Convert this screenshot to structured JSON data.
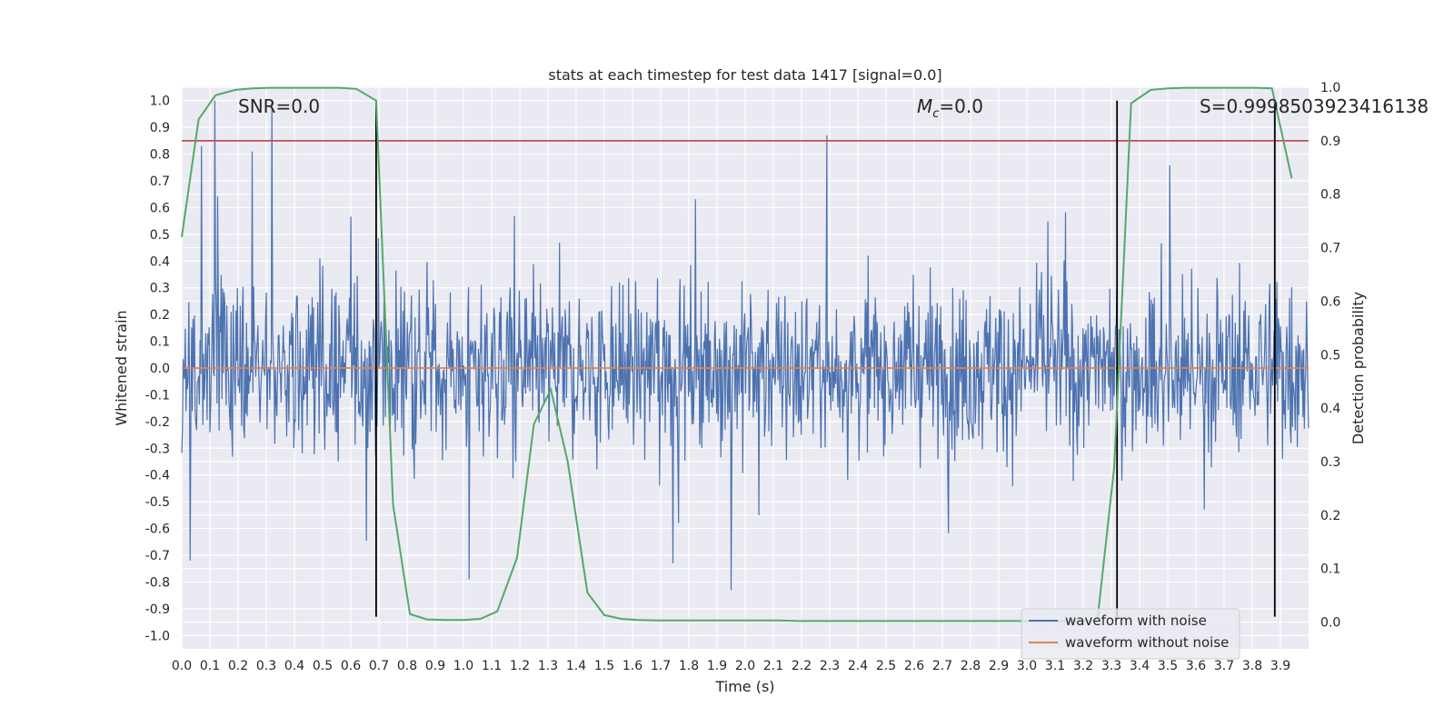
{
  "chart_data": {
    "type": "line",
    "title": "stats at each timestep for test data 1417 [signal=0.0]",
    "xlabel": "Time (s)",
    "ylabel_left": "Whitened strain",
    "ylabel_right": "Detection probability",
    "xlim": [
      0.0,
      4.0
    ],
    "ylim_left": [
      -1.05,
      1.05
    ],
    "ylim_right": [
      -0.05,
      1.0
    ],
    "x_ticks": [
      "0.0",
      "0.1",
      "0.2",
      "0.3",
      "0.4",
      "0.5",
      "0.6",
      "0.7",
      "0.8",
      "0.9",
      "1.0",
      "1.1",
      "1.2",
      "1.3",
      "1.4",
      "1.5",
      "1.6",
      "1.7",
      "1.8",
      "1.9",
      "2.0",
      "2.1",
      "2.2",
      "2.3",
      "2.4",
      "2.5",
      "2.6",
      "2.7",
      "2.8",
      "2.9",
      "3.0",
      "3.1",
      "3.2",
      "3.3",
      "3.4",
      "3.5",
      "3.6",
      "3.7",
      "3.8",
      "3.9"
    ],
    "y_ticks_left": [
      "1.0",
      "0.9",
      "0.8",
      "0.7",
      "0.6",
      "0.5",
      "0.4",
      "0.3",
      "0.2",
      "0.1",
      "0.0",
      "-0.1",
      "-0.2",
      "-0.3",
      "-0.4",
      "-0.5",
      "-0.6",
      "-0.7",
      "-0.8",
      "-0.9",
      "-1.0"
    ],
    "y_ticks_right": [
      "1.0",
      "0.9",
      "0.8",
      "0.7",
      "0.6",
      "0.5",
      "0.4",
      "0.3",
      "0.2",
      "0.1",
      "0.0"
    ],
    "annotations": {
      "snr": "SNR=0.0",
      "mc_symbol": "M",
      "mc_sub": "c",
      "mc_value": "=0.0",
      "s": "S=0.9998503923416138"
    },
    "legend": {
      "position": "lower-right",
      "entries": [
        "waveform with noise",
        "waveform without noise"
      ]
    },
    "threshold_probability": 0.9,
    "vertical_lines_s": [
      0.69,
      3.32,
      3.88
    ],
    "series": [
      {
        "name": "waveform with noise",
        "axis": "left",
        "color": "#4c72b0",
        "style": "noise",
        "min": -0.83,
        "max": 1.0,
        "peaks": [
          [
            0.32,
            1.0
          ],
          [
            0.07,
            0.83
          ],
          [
            2.29,
            0.87
          ],
          [
            1.95,
            -0.83
          ],
          [
            0.03,
            -0.72
          ],
          [
            1.02,
            -0.79
          ]
        ]
      },
      {
        "name": "waveform without noise",
        "axis": "left",
        "color": "#dd8452",
        "x": [
          0.0,
          4.0
        ],
        "y": [
          0.0,
          0.0
        ]
      },
      {
        "name": "detection probability",
        "axis": "right",
        "color": "#55a868",
        "x": [
          0.0,
          0.06,
          0.12,
          0.19,
          0.25,
          0.31,
          0.38,
          0.44,
          0.5,
          0.56,
          0.62,
          0.69,
          0.75,
          0.81,
          0.87,
          0.94,
          1.0,
          1.06,
          1.12,
          1.19,
          1.25,
          1.31,
          1.37,
          1.44,
          1.5,
          1.56,
          1.62,
          1.69,
          1.75,
          1.81,
          1.87,
          1.94,
          2.0,
          2.06,
          2.12,
          2.19,
          2.25,
          2.31,
          2.37,
          2.44,
          2.5,
          2.56,
          2.62,
          2.69,
          2.75,
          2.81,
          2.87,
          2.94,
          3.0,
          3.06,
          3.12,
          3.19,
          3.25,
          3.31,
          3.37,
          3.44,
          3.5,
          3.56,
          3.62,
          3.69,
          3.75,
          3.81,
          3.87,
          3.94
        ],
        "y": [
          0.72,
          0.94,
          0.985,
          0.995,
          0.998,
          0.999,
          0.999,
          0.999,
          0.999,
          0.999,
          0.997,
          0.975,
          0.22,
          0.015,
          0.005,
          0.004,
          0.004,
          0.006,
          0.02,
          0.12,
          0.37,
          0.435,
          0.3,
          0.055,
          0.013,
          0.006,
          0.004,
          0.003,
          0.003,
          0.003,
          0.003,
          0.003,
          0.003,
          0.003,
          0.003,
          0.002,
          0.002,
          0.002,
          0.002,
          0.002,
          0.002,
          0.002,
          0.002,
          0.002,
          0.002,
          0.002,
          0.002,
          0.002,
          0.002,
          0.002,
          0.002,
          0.002,
          0.002,
          0.29,
          0.97,
          0.995,
          0.998,
          0.999,
          0.999,
          0.999,
          0.999,
          0.999,
          0.998,
          0.83
        ]
      }
    ]
  }
}
